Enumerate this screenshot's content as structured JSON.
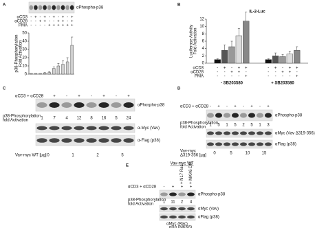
{
  "chart_data": [
    {
      "type": "bar",
      "panel_label": "A",
      "blot_label": "αPhospho-p38",
      "y_label": [
        "p38-Phosphorylation",
        "Fold Activation"
      ],
      "values": [
        1,
        1,
        1,
        1.5,
        2,
        7,
        10,
        12,
        15,
        35
      ],
      "errors": [
        0,
        0,
        0,
        0.5,
        1,
        2,
        3,
        4,
        5,
        10
      ],
      "color": "#cfcfcf",
      "ylim": [
        0,
        50
      ],
      "yticks": [
        0,
        10,
        20,
        30,
        40,
        50
      ],
      "conditions": [
        {
          "name": "αCD3",
          "signs": [
            "-",
            "+",
            "-",
            "+",
            "-",
            "+",
            "-",
            "+",
            "-",
            "+"
          ]
        },
        {
          "name": "αCD28",
          "signs": [
            "-",
            "-",
            "+",
            "+",
            "-",
            "-",
            "+",
            "+",
            "-",
            "+"
          ]
        },
        {
          "name": "PMA",
          "signs": [
            "-",
            "-",
            "-",
            "-",
            "+",
            "+",
            "+",
            "+",
            "+",
            "+"
          ]
        }
      ]
    },
    {
      "type": "grouped_bar",
      "panel_label": "B",
      "title": "IL-2-Luc",
      "y_label": [
        "Luciferase Activity",
        "Fold Activation"
      ],
      "categories": [
        "- SB203580",
        "+ SB203580"
      ],
      "series": [
        {
          "color": "#111111",
          "values": [
            1,
            1
          ],
          "errors": [
            0.2,
            0.2
          ]
        },
        {
          "color": "#555555",
          "values": [
            3.5,
            2
          ],
          "errors": [
            1.5,
            0.8
          ]
        },
        {
          "color": "#999999",
          "values": [
            4.5,
            1.8
          ],
          "errors": [
            1.5,
            0.6
          ]
        },
        {
          "color": "#dddddd",
          "values": [
            7.5,
            2.5
          ],
          "errors": [
            2,
            0.8
          ]
        },
        {
          "color": "#888888",
          "values": [
            11.5,
            3.5
          ],
          "errors": [
            2.5,
            1
          ]
        }
      ],
      "ylim": [
        0,
        12
      ],
      "yticks": [
        0,
        2,
        4,
        6,
        8,
        10,
        12
      ],
      "conditions": [
        {
          "name": "αCD3",
          "signs": [
            "-",
            "+",
            "-",
            "+",
            "+",
            "-",
            "+",
            "-",
            "+",
            "+"
          ]
        },
        {
          "name": "αCD28",
          "signs": [
            "-",
            "-",
            "+",
            "+",
            "-",
            "-",
            "-",
            "+",
            "+",
            "-"
          ]
        },
        {
          "name": "PMA",
          "signs": [
            "-",
            "-",
            "-",
            "-",
            "+",
            "-",
            "-",
            "-",
            "-",
            "+"
          ]
        }
      ]
    }
  ],
  "blot_panels": [
    {
      "label": "C",
      "stimulus": "αCD3 + αCD28",
      "signs": [
        "-",
        "+",
        "-",
        "+",
        "-",
        "+",
        "-",
        "+"
      ],
      "fold_label": [
        "p38-Phosphorylation",
        "fold Activation"
      ],
      "fold_values": [
        1,
        7,
        4,
        12,
        8,
        16,
        5,
        24
      ],
      "blots": [
        "αPhospho-p38",
        "α-Myc (Vav)",
        "α-Flag (p38)"
      ],
      "amount_label": [
        "Vav-myc WT [µg]"
      ],
      "amounts": [
        0,
        1,
        2,
        5
      ]
    },
    {
      "label": "D",
      "stimulus": "αCD3 + αCD28",
      "signs": [
        "-",
        "+",
        "-",
        "+",
        "-",
        "+",
        "-",
        "+"
      ],
      "fold_label": [
        "p38-Phosphorylation",
        "fold Activation"
      ],
      "fold_values": [
        1,
        5,
        1,
        5,
        2,
        5,
        1,
        3
      ],
      "blots": [
        "αPhospho-p38",
        "αMyc (Vav Δ319-356)",
        "αFlag (p38)"
      ],
      "amount_label": [
        "Vav-myc",
        "Δ319-356 [µg]"
      ],
      "amounts": [
        0,
        5,
        10,
        15
      ]
    },
    {
      "label": "E",
      "top_label": "Vav-myc WT",
      "columns": [
        "+ N17 Rac",
        "+ MKK6 DN"
      ],
      "stimulus": "αCD3 + αCD28",
      "signs": [
        "-",
        "+",
        "+",
        "+"
      ],
      "fold_label": [
        "p38-Phosphorylation",
        "fold Activation"
      ],
      "fold_values": [
        1,
        11,
        2,
        4
      ],
      "blots": [
        "αPhospho-p38",
        "αMyc (Vav)",
        "αFlag (p38)"
      ],
      "bottom_labels": [
        "αMyc (Rac)",
        "αHA (MKK6)"
      ]
    }
  ]
}
